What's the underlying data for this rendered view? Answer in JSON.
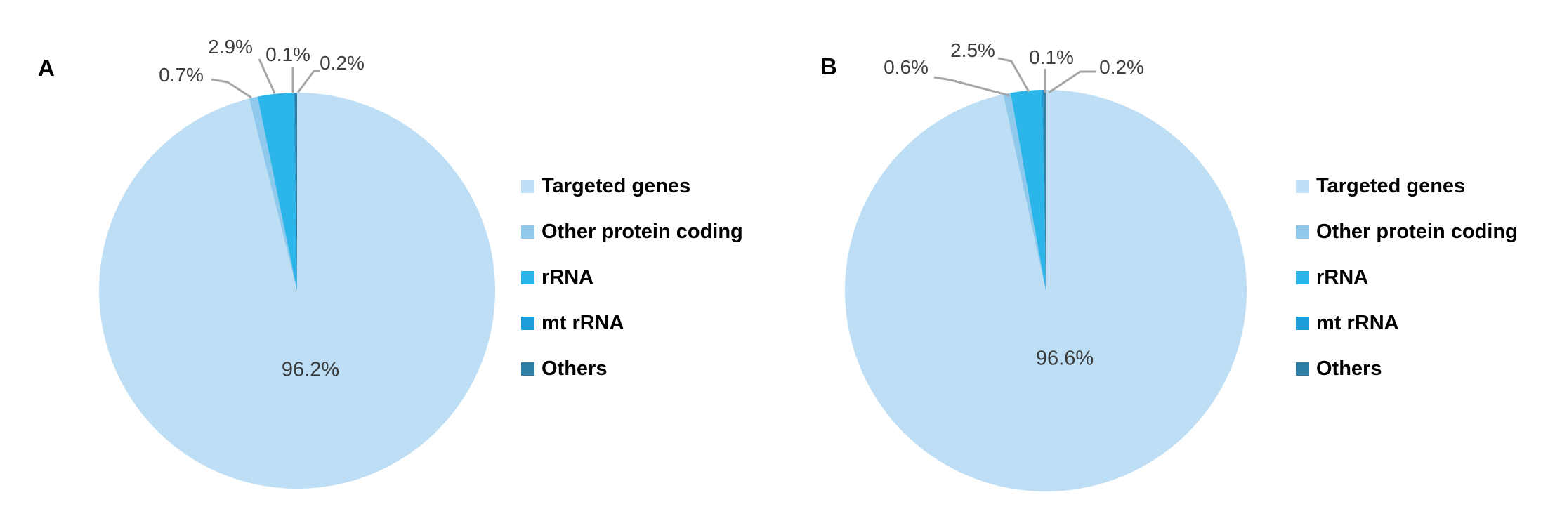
{
  "figure": {
    "background": "#FFFFFF",
    "panel_labels": [
      "A",
      "B"
    ]
  },
  "chart_data": [
    {
      "type": "pie",
      "panel_label": "A",
      "categories": [
        "Targeted genes",
        "Other protein coding",
        "rRNA",
        "mt rRNA",
        "Others"
      ],
      "values": [
        96.2,
        0.7,
        2.9,
        0.1,
        0.2
      ],
      "labels": [
        "96.2%",
        "0.7%",
        "2.9%",
        "0.1%",
        "0.2%"
      ],
      "colors": [
        "#BDDEF5",
        "#8FC9EC",
        "#2CB5E8",
        "#1C9CD9",
        "#2E7FA6"
      ],
      "start_angle_deg": 0,
      "direction": "clockwise",
      "legend_position": "right",
      "inside_label_for": "Targeted genes",
      "outside_labels_for": [
        "Other protein coding",
        "rRNA",
        "mt rRNA",
        "Others"
      ]
    },
    {
      "type": "pie",
      "panel_label": "B",
      "categories": [
        "Targeted genes",
        "Other protein coding",
        "rRNA",
        "mt rRNA",
        "Others"
      ],
      "values": [
        96.6,
        0.6,
        2.5,
        0.1,
        0.2
      ],
      "labels": [
        "96.6%",
        "0.6%",
        "2.5%",
        "0.1%",
        "0.2%"
      ],
      "colors": [
        "#BDDEF5",
        "#8FC9EC",
        "#2CB5E8",
        "#1C9CD9",
        "#2E7FA6"
      ],
      "start_angle_deg": 0,
      "direction": "clockwise",
      "legend_position": "right",
      "inside_label_for": "Targeted genes",
      "outside_labels_for": [
        "Other protein coding",
        "rRNA",
        "mt rRNA",
        "Others"
      ]
    }
  ],
  "style_colors": {
    "leader_line": "#A6A6A6",
    "percent_label_text": "#3F3F3F",
    "legend_text": "#000000"
  }
}
